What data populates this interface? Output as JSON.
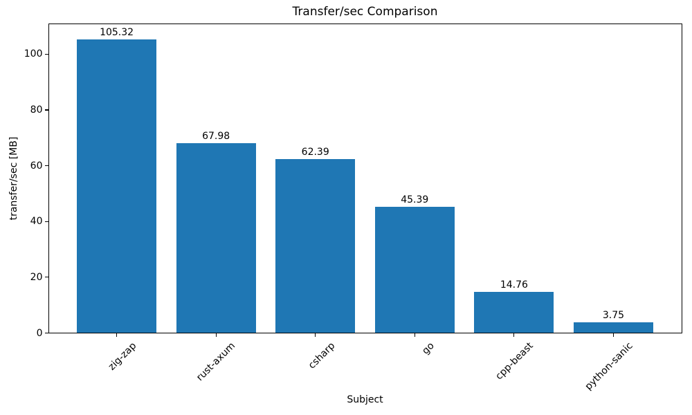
{
  "chart_data": {
    "type": "bar",
    "title": "Transfer/sec Comparison",
    "xlabel": "Subject",
    "ylabel": "transfer/sec [MB]",
    "categories": [
      "zig-zap",
      "rust-axum",
      "csharp",
      "go",
      "cpp-beast",
      "python-sanic"
    ],
    "values": [
      105.32,
      67.98,
      62.39,
      45.39,
      14.76,
      3.75
    ],
    "value_labels": [
      "105.32",
      "67.98",
      "62.39",
      "45.39",
      "14.76",
      "3.75"
    ],
    "yticks": [
      0,
      20,
      40,
      60,
      80,
      100
    ],
    "ytick_labels": [
      "0",
      "20",
      "40",
      "60",
      "80",
      "100"
    ],
    "ylim": [
      0,
      111
    ],
    "xtick_rotation_deg": 45,
    "bar_color": "#1f77b4",
    "text_color": "#000000",
    "background_color": "#ffffff",
    "grid": false,
    "legend": null
  }
}
